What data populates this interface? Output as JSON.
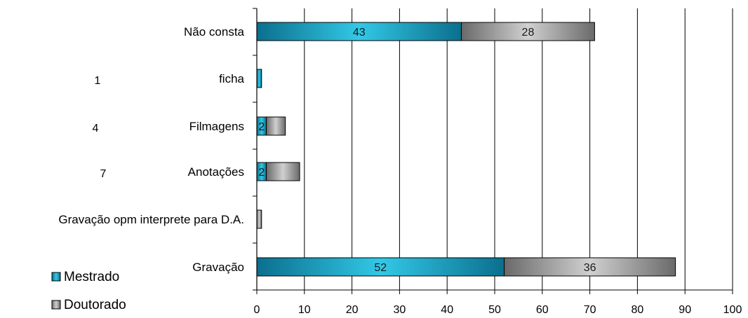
{
  "chart_data": {
    "type": "bar",
    "orientation": "horizontal",
    "stacked": true,
    "categories": [
      "Não consta",
      "ficha",
      "Filmagens",
      "Anotações",
      "Gravação opm interprete para D.A.",
      "Gravação"
    ],
    "series": [
      {
        "name": "Mestrado",
        "values": [
          43,
          1,
          2,
          2,
          0,
          52
        ],
        "labels": [
          "43",
          "",
          "2",
          "2",
          "",
          "52"
        ]
      },
      {
        "name": "Doutorado",
        "values": [
          28,
          0,
          4,
          7,
          1,
          36
        ],
        "labels": [
          "28",
          "",
          "",
          "",
          "",
          "36"
        ]
      }
    ],
    "side_numbers": [
      "",
      "1",
      "4",
      "7",
      "",
      ""
    ],
    "xlim": [
      0,
      100
    ],
    "xticks": [
      "0",
      "10",
      "20",
      "30",
      "40",
      "50",
      "60",
      "70",
      "80",
      "90",
      "100"
    ],
    "grid": "vertical",
    "legend_position": "bottom-left",
    "colors": {
      "Mestrado": "#1aa6c8",
      "Doutorado": "#8c8c8c",
      "grid": "#000000"
    }
  }
}
